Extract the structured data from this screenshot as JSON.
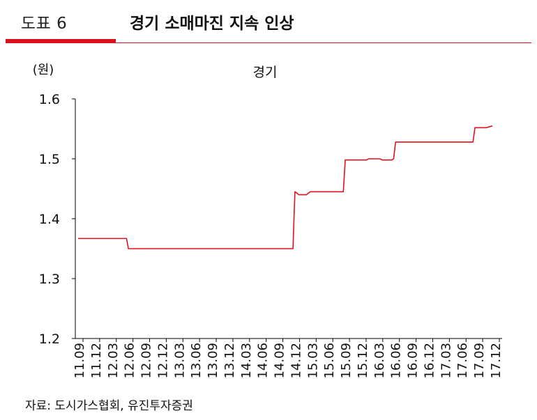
{
  "header": {
    "figure_label": "도표 6",
    "title": "경기 소매마진 지속 인상"
  },
  "source": "자료: 도시가스협회, 유진투자증권",
  "colors": {
    "accent": "#d9111a",
    "line": "#e3101d"
  },
  "chart_data": {
    "type": "line",
    "title": "경기",
    "ylabel": "(원)",
    "xlabel": "",
    "ylim": [
      1.2,
      1.6
    ],
    "yticks": [
      1.2,
      1.3,
      1.4,
      1.5,
      1.6
    ],
    "yticklabels": [
      "1.2",
      "1.3",
      "1.4",
      "1.5",
      "1.6"
    ],
    "grid": false,
    "xticklabels": [
      "11.09",
      "11.12",
      "12.03",
      "12.06",
      "12.09",
      "12.12",
      "13.03",
      "13.06",
      "13.09",
      "13.12",
      "14.03",
      "14.06",
      "14.09",
      "14.12",
      "15.03",
      "15.06",
      "15.09",
      "15.12",
      "16.03",
      "16.06",
      "16.09",
      "16.12",
      "17.03",
      "17.06",
      "17.09",
      "17.12"
    ],
    "series": [
      {
        "values": [
          1.367,
          1.367,
          1.367,
          1.367,
          1.367,
          1.367,
          1.367,
          1.367,
          1.367,
          1.367,
          1.367,
          1.367,
          1.367,
          1.367,
          1.367,
          1.367,
          1.367,
          1.367,
          1.367,
          1.367,
          1.367,
          1.367,
          1.367,
          1.367,
          1.367,
          1.367,
          1.35,
          1.35,
          1.35,
          1.35,
          1.35,
          1.35,
          1.35,
          1.35,
          1.35,
          1.35,
          1.35,
          1.35,
          1.35,
          1.35,
          1.35,
          1.35,
          1.35,
          1.35,
          1.35,
          1.35,
          1.35,
          1.35,
          1.35,
          1.35,
          1.35,
          1.35,
          1.35,
          1.35,
          1.35,
          1.35,
          1.35,
          1.35,
          1.35,
          1.35,
          1.35,
          1.35,
          1.35,
          1.35,
          1.35,
          1.35,
          1.35,
          1.35,
          1.35,
          1.35,
          1.35,
          1.35,
          1.35,
          1.35,
          1.35,
          1.35,
          1.35,
          1.35,
          1.35,
          1.35,
          1.35,
          1.35,
          1.35,
          1.35,
          1.35,
          1.35,
          1.35,
          1.35,
          1.35,
          1.35,
          1.35,
          1.35,
          1.35,
          1.35,
          1.35,
          1.35,
          1.35,
          1.35,
          1.35,
          1.35,
          1.35,
          1.35,
          1.35,
          1.35,
          1.35,
          1.35,
          1.35,
          1.35,
          1.35,
          1.35,
          1.35,
          1.35,
          1.445,
          1.443,
          1.44,
          1.44,
          1.44,
          1.44,
          1.44,
          1.443,
          1.445,
          1.445,
          1.445,
          1.445,
          1.445,
          1.445,
          1.445,
          1.445,
          1.445,
          1.445,
          1.445,
          1.445,
          1.445,
          1.445,
          1.445,
          1.445,
          1.445,
          1.445,
          1.498,
          1.498,
          1.498,
          1.498,
          1.498,
          1.498,
          1.498,
          1.498,
          1.498,
          1.498,
          1.498,
          1.498,
          1.5,
          1.5,
          1.5,
          1.5,
          1.5,
          1.5,
          1.5,
          1.498,
          1.498,
          1.498,
          1.498,
          1.498,
          1.498,
          1.5,
          1.528,
          1.528,
          1.528,
          1.528,
          1.528,
          1.528,
          1.528,
          1.528,
          1.528,
          1.528,
          1.528,
          1.528,
          1.528,
          1.528,
          1.528,
          1.528,
          1.528,
          1.528,
          1.528,
          1.528,
          1.528,
          1.528,
          1.528,
          1.528,
          1.528,
          1.528,
          1.528,
          1.528,
          1.528,
          1.528,
          1.528,
          1.528,
          1.528,
          1.528,
          1.528,
          1.528,
          1.528,
          1.528,
          1.528,
          1.528,
          1.528,
          1.552,
          1.552,
          1.552,
          1.552,
          1.552,
          1.552,
          1.552,
          1.553,
          1.554,
          1.555
        ]
      }
    ]
  }
}
